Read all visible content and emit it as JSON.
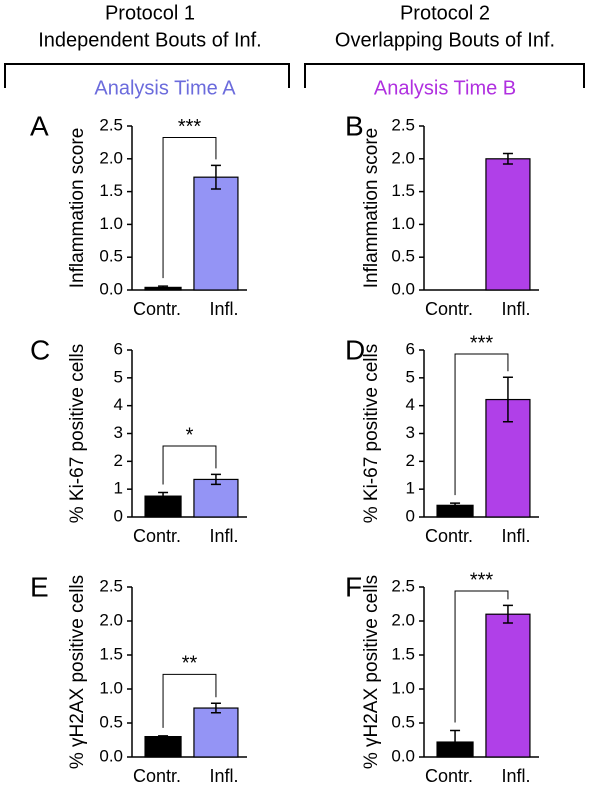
{
  "header": {
    "columns": [
      {
        "protocol": "Protocol 1",
        "description": "Independent Bouts of Inf.",
        "analysis": "Analysis Time A",
        "analysis_color": "#6b6bdc"
      },
      {
        "protocol": "Protocol 2",
        "description": "Overlapping Bouts of Inf.",
        "analysis": "Analysis Time B",
        "analysis_color": "#b030e0"
      }
    ]
  },
  "chart_data": [
    {
      "type": "bar",
      "panel": "A",
      "ylabel": "Inflammation score",
      "categories": [
        "Contr.",
        "Infl."
      ],
      "values": [
        0.04,
        1.72
      ],
      "errors": [
        0.02,
        0.18
      ],
      "colors": [
        "#000000",
        "#9494f5"
      ],
      "annotation": "***",
      "ylim": [
        0,
        2.5
      ],
      "yticks": [
        {
          "value": 0,
          "label": "0.0"
        },
        0.5,
        {
          "value": 1,
          "label": "1.0"
        },
        1.5,
        {
          "value": 2,
          "label": "2.0"
        },
        2.5
      ]
    },
    {
      "type": "bar",
      "panel": "B",
      "ylabel": "Inflammation score",
      "categories": [
        "Contr.",
        "Infl."
      ],
      "values": [
        0,
        2.0
      ],
      "errors": [
        0,
        0.08
      ],
      "colors": [
        "#000000",
        "#b040e8"
      ],
      "ylim": [
        0,
        2.5
      ],
      "yticks": [
        {
          "value": 0,
          "label": "0.0"
        },
        0.5,
        {
          "value": 1,
          "label": "1.0"
        },
        1.5,
        {
          "value": 2,
          "label": "2.0"
        },
        2.5
      ]
    },
    {
      "type": "bar",
      "panel": "C",
      "ylabel": "% Ki-67 positive cells",
      "categories": [
        "Contr.",
        "Infl."
      ],
      "values": [
        0.75,
        1.35
      ],
      "errors": [
        0.13,
        0.18
      ],
      "colors": [
        "#000000",
        "#9494f5"
      ],
      "annotation": "*",
      "ylim": [
        0,
        6
      ],
      "yticks": [
        0,
        1,
        2,
        3,
        4,
        5,
        6
      ]
    },
    {
      "type": "bar",
      "panel": "D",
      "ylabel": "% Ki-67 positive cells",
      "categories": [
        "Contr.",
        "Infl."
      ],
      "values": [
        0.42,
        4.22
      ],
      "errors": [
        0.08,
        0.8
      ],
      "colors": [
        "#000000",
        "#b040e8"
      ],
      "annotation": "***",
      "ylim": [
        0,
        6
      ],
      "yticks": [
        0,
        1,
        2,
        3,
        4,
        5,
        6
      ]
    },
    {
      "type": "bar",
      "panel": "E",
      "ylabel": "% γH2AX positive cells",
      "categories": [
        "Contr.",
        "Infl."
      ],
      "values": [
        0.3,
        0.72
      ],
      "errors": [
        0.01,
        0.07
      ],
      "colors": [
        "#000000",
        "#9494f5"
      ],
      "annotation": "**",
      "ylim": [
        0,
        2.5
      ],
      "yticks": [
        {
          "value": 0,
          "label": "0.0"
        },
        0.5,
        {
          "value": 1,
          "label": "1.0"
        },
        1.5,
        {
          "value": 2,
          "label": "2.0"
        },
        2.5
      ]
    },
    {
      "type": "bar",
      "panel": "F",
      "ylabel": "% γH2AX positive cells",
      "categories": [
        "Contr.",
        "Infl."
      ],
      "values": [
        0.22,
        2.1
      ],
      "errors": [
        0.17,
        0.13
      ],
      "colors": [
        "#000000",
        "#b040e8"
      ],
      "annotation": "***",
      "ylim": [
        0,
        2.5
      ],
      "yticks": [
        {
          "value": 0,
          "label": "0.0"
        },
        0.5,
        {
          "value": 1,
          "label": "1.0"
        },
        1.5,
        {
          "value": 2,
          "label": "2.0"
        },
        2.5
      ]
    }
  ]
}
